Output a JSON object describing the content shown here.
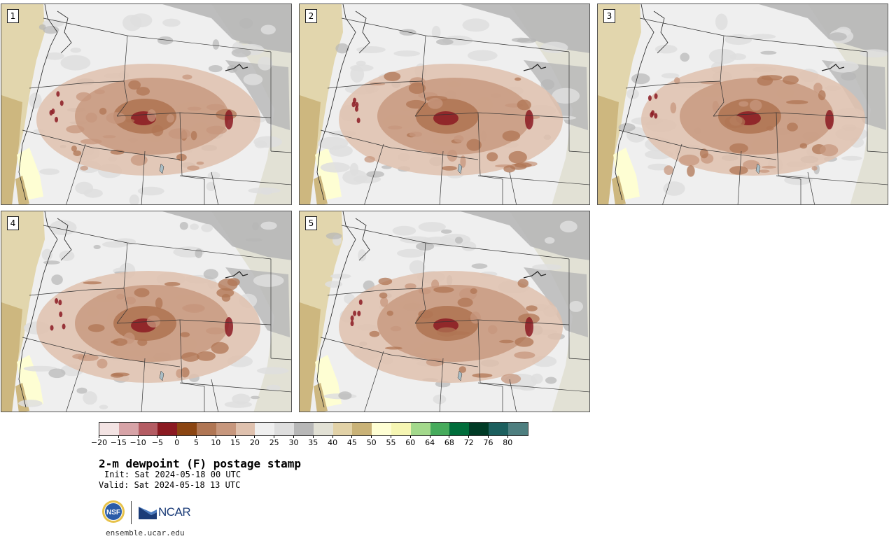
{
  "panels": [
    {
      "label": "1",
      "dev": 0
    },
    {
      "label": "2",
      "dev": 1
    },
    {
      "label": "3",
      "dev": 2
    },
    {
      "label": "4",
      "dev": 3
    },
    {
      "label": "5",
      "dev": 4
    }
  ],
  "colorbar": {
    "colors": [
      "#f3e3e3",
      "#d7a3a7",
      "#b45c63",
      "#8b1a22",
      "#8b4512",
      "#b07654",
      "#c7977d",
      "#dfc1ae",
      "#efefef",
      "#dedede",
      "#b7b7b7",
      "#e2e1d5",
      "#e2d2a7",
      "#c9b277",
      "#fefed3",
      "#f6f6b3",
      "#a3d98c",
      "#46ab5c",
      "#006d3b",
      "#003b26",
      "#1c5f5e",
      "#4e7f80"
    ],
    "tick_labels": [
      "−20",
      "−15",
      "−10",
      "−5",
      "0",
      "5",
      "10",
      "15",
      "20",
      "25",
      "30",
      "35",
      "40",
      "45",
      "50",
      "55",
      "60",
      "64",
      "68",
      "72",
      "76",
      "80"
    ]
  },
  "title": "2-m dewpoint (F) postage stamp",
  "init_line": "Init: Sat 2024-05-18 00 UTC",
  "valid_line": "Valid: Sat 2024-05-18 13 UTC",
  "logos": {
    "nsf": "NSF",
    "ncar": "NCAR"
  },
  "url": "ensemble.ucar.edu",
  "map_colors": {
    "ocean": "#e2d6ad",
    "coast": "#cdb77f",
    "dry_brown_light": "#dfc1ae",
    "dry_brown_mid": "#c7977d",
    "dry_brown_dark": "#b07654",
    "dry_red": "#8b1a22",
    "gray_light": "#efefef",
    "gray_mid": "#dedede",
    "gray_dark": "#b7b7b7",
    "plains": "#e2e1d5",
    "yellow": "#fefed3"
  }
}
